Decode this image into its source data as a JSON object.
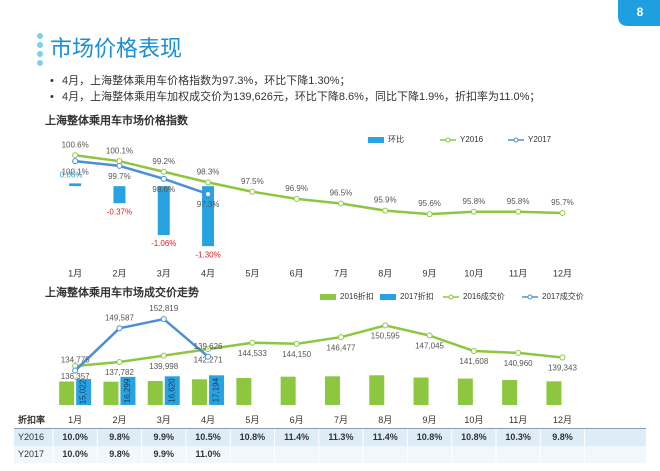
{
  "page_number": "8",
  "title": "市场价格表现",
  "bullets": [
    "4月，上海整体乘用车价格指数为97.3%，环比下降1.30%；",
    "4月，上海整体乘用车加权成交价为139,626元，环比下降8.6%，同比下降1.9%，折扣率为11.0%；"
  ],
  "chart_data": [
    {
      "type": "combo",
      "title": "上海整体乘用车市场价格指数",
      "categories": [
        "1月",
        "2月",
        "3月",
        "4月",
        "5月",
        "6月",
        "7月",
        "8月",
        "9月",
        "10月",
        "11月",
        "12月"
      ],
      "ylim": [
        91.7,
        101.9
      ],
      "y2lim": [
        -1.6,
        1.0
      ],
      "series": [
        {
          "name": "环比",
          "kind": "bar",
          "axis": "y2",
          "color": "#29a3e0",
          "values": [
            0.06,
            -0.37,
            -1.06,
            -1.3,
            null,
            null,
            null,
            null,
            null,
            null,
            null,
            null
          ],
          "value_labels": [
            "0.06%",
            "-0.37%",
            "-1.06%",
            "-1.30%",
            null,
            null,
            null,
            null,
            null,
            null,
            null,
            null
          ]
        },
        {
          "name": "Y2016",
          "kind": "line",
          "color": "#8dc63f",
          "values": [
            100.6,
            100.1,
            99.2,
            98.3,
            97.5,
            96.9,
            96.5,
            95.9,
            95.6,
            95.8,
            95.8,
            95.7
          ],
          "value_labels": [
            "100.6%",
            "100.1%",
            "99.2%",
            "98.3%",
            "97.5%",
            "96.9%",
            "96.5%",
            "95.9%",
            "95.6%",
            "95.8%",
            "95.8%",
            "95.7%"
          ]
        },
        {
          "name": "Y2017",
          "kind": "line",
          "color": "#4a90d9",
          "values": [
            100.1,
            99.7,
            98.6,
            97.3,
            null,
            null,
            null,
            null,
            null,
            null,
            null,
            null
          ],
          "value_labels": [
            "100.1%",
            "99.7%",
            "98.6%",
            "97.3%",
            null,
            null,
            null,
            null,
            null,
            null,
            null,
            null
          ]
        }
      ]
    },
    {
      "type": "combo",
      "title": "上海整体乘用车市场成交价走势",
      "categories": [
        "1月",
        "2月",
        "3月",
        "4月",
        "5月",
        "6月",
        "7月",
        "8月",
        "9月",
        "10月",
        "11月",
        "12月"
      ],
      "ylim": [
        122700,
        156000
      ],
      "y2lim": [
        0,
        55000
      ],
      "series": [
        {
          "name": "2016折扣",
          "kind": "bar",
          "axis": "y2",
          "color": "#8dc63f",
          "values": [
            13600,
            13500,
            13900,
            14900,
            15600,
            16400,
            16600,
            17200,
            15900,
            15300,
            14500,
            13700
          ]
        },
        {
          "name": "2017折扣",
          "kind": "bar",
          "axis": "y2",
          "color": "#29a3e0",
          "values": [
            15022,
            16299,
            16620,
            17194,
            null,
            null,
            null,
            null,
            null,
            null,
            null,
            null
          ],
          "value_labels": [
            "15,022",
            "16,299",
            "16,620",
            "17,194",
            null,
            null,
            null,
            null,
            null,
            null,
            null,
            null
          ]
        },
        {
          "name": "2016成交价",
          "kind": "line",
          "color": "#8dc63f",
          "values": [
            136357,
            137782,
            139998,
            142271,
            144533,
            144150,
            146477,
            150595,
            147045,
            141608,
            140960,
            139343
          ],
          "value_labels": [
            "136,357",
            "137,782",
            "139,998",
            "142,271",
            "144,533",
            "144,150",
            "146,477",
            "150,595",
            "147,045",
            "141,608",
            "140,960",
            "139,343"
          ]
        },
        {
          "name": "2017成交价",
          "kind": "line",
          "color": "#4a90d9",
          "values": [
            134775,
            149587,
            152819,
            139626,
            null,
            null,
            null,
            null,
            null,
            null,
            null,
            null
          ],
          "value_labels": [
            "134,775",
            "149,587",
            "152,819",
            "139,626",
            null,
            null,
            null,
            null,
            null,
            null,
            null,
            null
          ]
        }
      ]
    }
  ],
  "table": {
    "header_label": "折扣率",
    "rows": [
      {
        "label": "Y2016",
        "cells": [
          "10.0%",
          "9.8%",
          "9.9%",
          "10.5%",
          "10.8%",
          "11.4%",
          "11.3%",
          "11.4%",
          "10.8%",
          "10.8%",
          "10.3%",
          "9.8%"
        ]
      },
      {
        "label": "Y2017",
        "cells": [
          "10.0%",
          "9.8%",
          "9.9%",
          "11.0%"
        ]
      }
    ]
  }
}
